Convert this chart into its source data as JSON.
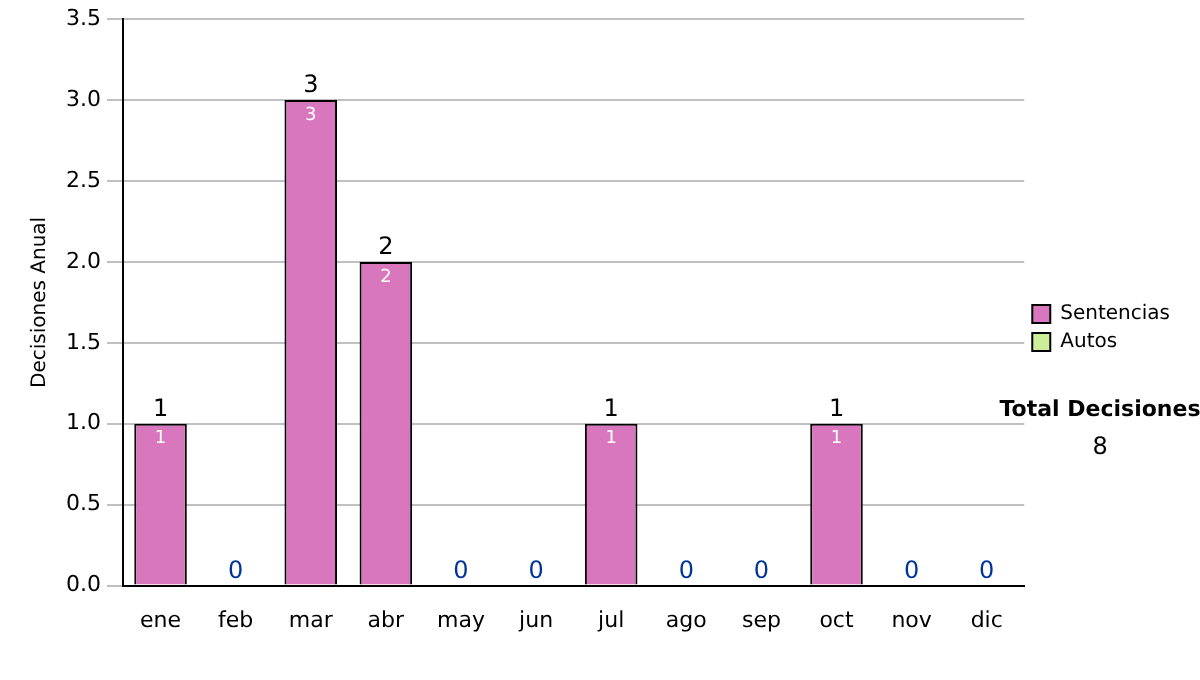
{
  "chart_data": {
    "type": "bar",
    "stacked": true,
    "ylabel": "Decisiones Anual",
    "categories": [
      "ene",
      "feb",
      "mar",
      "abr",
      "may",
      "jun",
      "jul",
      "ago",
      "sep",
      "oct",
      "nov",
      "dic"
    ],
    "series": [
      {
        "name": "Sentencias",
        "color": "#d877be",
        "values": [
          1,
          0,
          3,
          2,
          0,
          0,
          1,
          0,
          0,
          1,
          0,
          0
        ],
        "value_labels": [
          "1",
          null,
          "3",
          "2",
          null,
          null,
          "1",
          null,
          null,
          "1",
          null,
          null
        ]
      },
      {
        "name": "Autos",
        "color": "#ccee99",
        "values": [
          0,
          0,
          0,
          0,
          0,
          0,
          0,
          0,
          0,
          0,
          0,
          0
        ]
      }
    ],
    "totals": [
      "1",
      "0",
      "3",
      "2",
      "0",
      "0",
      "1",
      "0",
      "0",
      "1",
      "0",
      "0"
    ],
    "ylim": [
      0,
      3.5
    ],
    "yticks": [
      {
        "value": 0,
        "label": "0.0"
      },
      {
        "value": 0.5,
        "label": "0.5"
      },
      {
        "value": 1,
        "label": "1.0"
      },
      {
        "value": 1.5,
        "label": "1.5"
      },
      {
        "value": 2,
        "label": "2.0"
      },
      {
        "value": 2.5,
        "label": "2.5"
      },
      {
        "value": 3,
        "label": "3.0"
      },
      {
        "value": 3.5,
        "label": "3.5"
      }
    ],
    "grid": "y",
    "legend": "right",
    "annotations": [
      "Total Decisiones",
      "8"
    ]
  }
}
